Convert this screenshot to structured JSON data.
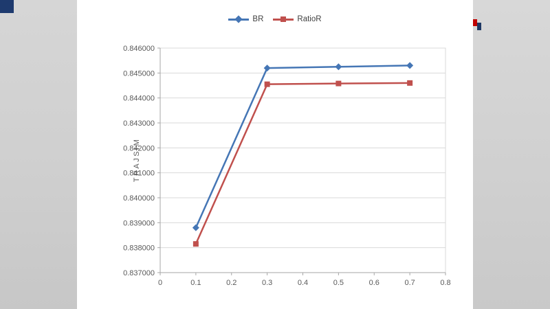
{
  "chart_data": {
    "type": "line",
    "title": "",
    "xlabel": "",
    "ylabel": "TRAJSIM",
    "x": [
      0.1,
      0.3,
      0.5,
      0.7
    ],
    "series": [
      {
        "name": "BR",
        "marker": "diamond",
        "color": "#4576b5",
        "values": [
          0.8388,
          0.8452,
          0.84525,
          0.8453
        ]
      },
      {
        "name": "RatioR",
        "marker": "square",
        "color": "#c0504d",
        "values": [
          0.83815,
          0.84455,
          0.84458,
          0.8446
        ]
      }
    ],
    "xlim": [
      0,
      0.8
    ],
    "ylim": [
      0.837,
      0.846
    ],
    "x_ticks": [
      "0",
      "0.1",
      "0.2",
      "0.3",
      "0.4",
      "0.5",
      "0.6",
      "0.7",
      "0.8"
    ],
    "y_ticks": [
      "0.837000",
      "0.838000",
      "0.839000",
      "0.840000",
      "0.841000",
      "0.842000",
      "0.843000",
      "0.844000",
      "0.845000",
      "0.846000"
    ],
    "grid": true,
    "legend_position": "top",
    "colors": {
      "grid": "#d9d9d9",
      "axis": "#a6a6a6",
      "tick_text": "#595959"
    }
  }
}
